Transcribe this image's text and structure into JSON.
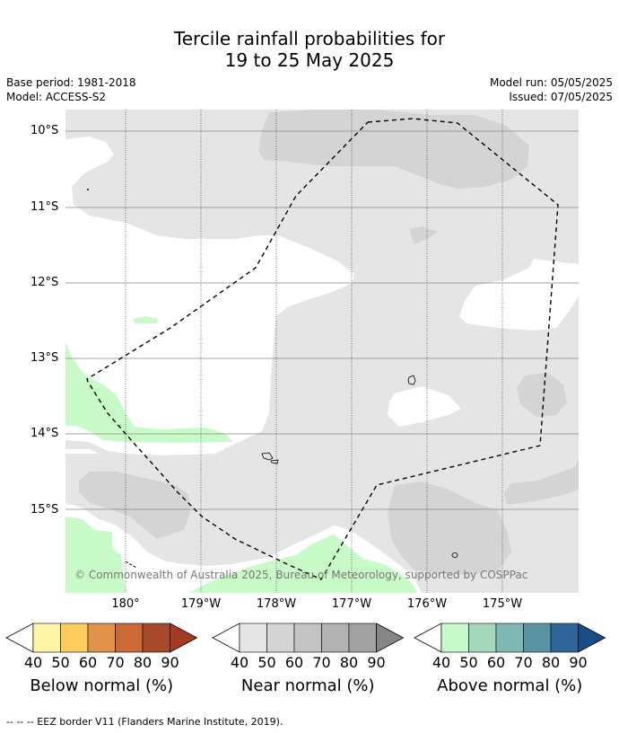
{
  "title": {
    "line1": "Tercile rainfall probabilities for",
    "line2": "19 to 25 May 2025"
  },
  "meta": {
    "base_period": "Base period: 1981-2018",
    "model": "Model: ACCESS-S2",
    "model_run": "Model run: 05/05/2025",
    "issued": "Issued: 07/05/2025"
  },
  "map": {
    "lat_labels": [
      "10°S",
      "11°S",
      "12°S",
      "13°S",
      "14°S",
      "15°S"
    ],
    "lon_labels": [
      "180°",
      "179°W",
      "178°W",
      "177°W",
      "176°W",
      "175°W"
    ],
    "copyright": "© Commonwealth of Australia 2025, Bureau of Meteorology, supported by COSPPac",
    "colors": {
      "near_normal_40": "#e5e5e5",
      "near_normal_50": "#d4d4d4",
      "above_normal_40": "#c8fbc8"
    }
  },
  "colorbars": [
    {
      "label": "Below normal (%)",
      "ticks": [
        "40",
        "50",
        "60",
        "70",
        "80",
        "90"
      ],
      "colors": [
        "#fff5a6",
        "#fecb5e",
        "#e0924a",
        "#cc6a35",
        "#a84a2a",
        "#a33b22"
      ]
    },
    {
      "label": "Near normal (%)",
      "ticks": [
        "40",
        "50",
        "60",
        "70",
        "80",
        "90"
      ],
      "colors": [
        "#e5e5e5",
        "#d4d4d4",
        "#c4c4c4",
        "#b2b2b2",
        "#a2a2a2",
        "#868686"
      ]
    },
    {
      "label": "Above normal (%)",
      "ticks": [
        "40",
        "50",
        "60",
        "70",
        "80",
        "90"
      ],
      "colors": [
        "#c8fbcc",
        "#a6d8bc",
        "#7fb8b3",
        "#5b93a2",
        "#2e669a",
        "#184e85"
      ]
    }
  ],
  "footer": "--  --  -- EEZ border V11 (Flanders Marine Institute, 2019)."
}
